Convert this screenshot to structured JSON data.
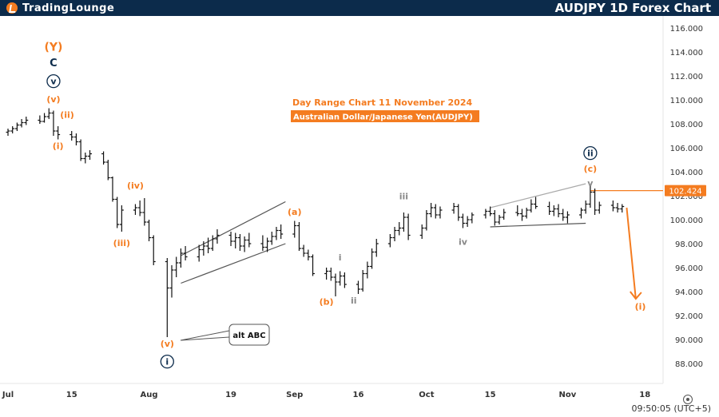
{
  "header": {
    "logo_text": "TradingLounge",
    "title": "AUDJPY 1D Forex Chart"
  },
  "annotations": {
    "subtitle_line1": "Day Range Chart 11 November 2024",
    "subtitle_line2": "Australian Dollar/Japanese Yen(AUDJPY)",
    "alt_callout": "alt ABC"
  },
  "footer": {
    "time": "09:50:05 (UTC+5)"
  },
  "colors": {
    "orange": "#f47c20",
    "navy": "#0c2b4b",
    "candle": "#111111",
    "gray": "#888888"
  },
  "chart_data": {
    "type": "candlestick",
    "title": "AUDJPY 1D Forex Chart",
    "ylim": [
      87,
      117
    ],
    "y_ticks": [
      88,
      90,
      92,
      94,
      96,
      98,
      100,
      102,
      104,
      106,
      108,
      110,
      112,
      114,
      116
    ],
    "y_tick_labels": [
      "88.000",
      "90.000",
      "92.000",
      "94.000",
      "96.000",
      "98.000",
      "100.000",
      "102.000",
      "104.000",
      "106.000",
      "108.000",
      "110.000",
      "112.000",
      "114.000",
      "116.000"
    ],
    "x_range": [
      "2024-07-01",
      "2024-11-22"
    ],
    "x_ticks": [
      {
        "label": "Jul",
        "date": "2024-07-01"
      },
      {
        "label": "15",
        "date": "2024-07-15"
      },
      {
        "label": "Aug",
        "date": "2024-08-01"
      },
      {
        "label": "19",
        "date": "2024-08-19"
      },
      {
        "label": "Sep",
        "date": "2024-09-02"
      },
      {
        "label": "16",
        "date": "2024-09-16"
      },
      {
        "label": "Oct",
        "date": "2024-10-01"
      },
      {
        "label": "15",
        "date": "2024-10-15"
      },
      {
        "label": "Nov",
        "date": "2024-11-01"
      },
      {
        "label": "18",
        "date": "2024-11-18"
      }
    ],
    "current_price": {
      "label": "102.424",
      "value": 102.424
    },
    "forecast_arrow": {
      "from": [
        "2024-11-14",
        101.0
      ],
      "to": [
        "2024-11-16",
        93.4
      ]
    },
    "ohlc": [
      {
        "d": "2024-07-01",
        "o": 107.3,
        "h": 107.6,
        "l": 107.0,
        "c": 107.4
      },
      {
        "d": "2024-07-02",
        "o": 107.4,
        "h": 107.8,
        "l": 107.2,
        "c": 107.6
      },
      {
        "d": "2024-07-03",
        "o": 107.6,
        "h": 108.1,
        "l": 107.4,
        "c": 107.9
      },
      {
        "d": "2024-07-04",
        "o": 107.9,
        "h": 108.4,
        "l": 107.7,
        "c": 108.1
      },
      {
        "d": "2024-07-05",
        "o": 108.1,
        "h": 108.6,
        "l": 107.9,
        "c": 108.3
      },
      {
        "d": "2024-07-08",
        "o": 108.3,
        "h": 108.7,
        "l": 108.0,
        "c": 108.2
      },
      {
        "d": "2024-07-09",
        "o": 108.2,
        "h": 108.9,
        "l": 108.1,
        "c": 108.6
      },
      {
        "d": "2024-07-10",
        "o": 108.6,
        "h": 109.3,
        "l": 108.4,
        "c": 108.9
      },
      {
        "d": "2024-07-11",
        "o": 108.9,
        "h": 109.1,
        "l": 107.0,
        "c": 107.4
      },
      {
        "d": "2024-07-12",
        "o": 107.4,
        "h": 107.8,
        "l": 106.7,
        "c": 107.1
      },
      {
        "d": "2024-07-15",
        "o": 107.1,
        "h": 107.4,
        "l": 106.6,
        "c": 106.9
      },
      {
        "d": "2024-07-16",
        "o": 106.9,
        "h": 107.2,
        "l": 106.2,
        "c": 106.5
      },
      {
        "d": "2024-07-17",
        "o": 106.5,
        "h": 106.7,
        "l": 104.9,
        "c": 105.1
      },
      {
        "d": "2024-07-18",
        "o": 105.1,
        "h": 105.6,
        "l": 104.7,
        "c": 105.3
      },
      {
        "d": "2024-07-19",
        "o": 105.3,
        "h": 105.8,
        "l": 105.0,
        "c": 105.5
      },
      {
        "d": "2024-07-22",
        "o": 105.5,
        "h": 105.7,
        "l": 104.6,
        "c": 104.8
      },
      {
        "d": "2024-07-23",
        "o": 104.8,
        "h": 105.0,
        "l": 103.3,
        "c": 103.5
      },
      {
        "d": "2024-07-24",
        "o": 103.5,
        "h": 103.6,
        "l": 101.5,
        "c": 101.7
      },
      {
        "d": "2024-07-25",
        "o": 101.7,
        "h": 101.9,
        "l": 99.3,
        "c": 99.6
      },
      {
        "d": "2024-07-26",
        "o": 99.6,
        "h": 101.2,
        "l": 99.0,
        "c": 100.8
      },
      {
        "d": "2024-07-29",
        "o": 100.8,
        "h": 101.3,
        "l": 100.4,
        "c": 101.0
      },
      {
        "d": "2024-07-30",
        "o": 101.0,
        "h": 101.6,
        "l": 100.3,
        "c": 100.6
      },
      {
        "d": "2024-07-31",
        "o": 100.6,
        "h": 101.8,
        "l": 99.5,
        "c": 99.8
      },
      {
        "d": "2024-08-01",
        "o": 99.8,
        "h": 100.0,
        "l": 98.2,
        "c": 98.5
      },
      {
        "d": "2024-08-02",
        "o": 98.5,
        "h": 98.7,
        "l": 96.2,
        "c": 96.5
      },
      {
        "d": "2024-08-05",
        "o": 96.5,
        "h": 96.8,
        "l": 90.2,
        "c": 94.3
      },
      {
        "d": "2024-08-06",
        "o": 94.3,
        "h": 96.2,
        "l": 93.5,
        "c": 95.8
      },
      {
        "d": "2024-08-07",
        "o": 95.8,
        "h": 96.9,
        "l": 95.2,
        "c": 96.4
      },
      {
        "d": "2024-08-08",
        "o": 96.4,
        "h": 97.6,
        "l": 96.0,
        "c": 97.2
      },
      {
        "d": "2024-08-09",
        "o": 97.2,
        "h": 97.8,
        "l": 96.6,
        "c": 96.9
      },
      {
        "d": "2024-08-12",
        "o": 96.9,
        "h": 97.9,
        "l": 96.5,
        "c": 97.5
      },
      {
        "d": "2024-08-13",
        "o": 97.5,
        "h": 98.2,
        "l": 97.0,
        "c": 97.8
      },
      {
        "d": "2024-08-14",
        "o": 97.8,
        "h": 98.5,
        "l": 97.2,
        "c": 97.6
      },
      {
        "d": "2024-08-15",
        "o": 97.6,
        "h": 98.7,
        "l": 97.4,
        "c": 98.4
      },
      {
        "d": "2024-08-16",
        "o": 98.4,
        "h": 99.2,
        "l": 98.0,
        "c": 98.7
      },
      {
        "d": "2024-08-19",
        "o": 98.7,
        "h": 99.0,
        "l": 97.8,
        "c": 98.2
      },
      {
        "d": "2024-08-20",
        "o": 98.2,
        "h": 98.9,
        "l": 97.6,
        "c": 98.5
      },
      {
        "d": "2024-08-21",
        "o": 98.5,
        "h": 98.8,
        "l": 97.4,
        "c": 97.8
      },
      {
        "d": "2024-08-22",
        "o": 97.8,
        "h": 98.6,
        "l": 97.3,
        "c": 98.3
      },
      {
        "d": "2024-08-23",
        "o": 98.3,
        "h": 98.9,
        "l": 97.7,
        "c": 98.0
      },
      {
        "d": "2024-08-26",
        "o": 98.0,
        "h": 98.7,
        "l": 97.4,
        "c": 97.7
      },
      {
        "d": "2024-08-27",
        "o": 97.7,
        "h": 98.5,
        "l": 97.3,
        "c": 98.2
      },
      {
        "d": "2024-08-28",
        "o": 98.2,
        "h": 99.0,
        "l": 97.9,
        "c": 98.6
      },
      {
        "d": "2024-08-29",
        "o": 98.6,
        "h": 99.4,
        "l": 98.3,
        "c": 99.1
      },
      {
        "d": "2024-08-30",
        "o": 99.1,
        "h": 99.6,
        "l": 98.4,
        "c": 98.8
      },
      {
        "d": "2024-09-02",
        "o": 98.8,
        "h": 99.9,
        "l": 98.5,
        "c": 99.5
      },
      {
        "d": "2024-09-03",
        "o": 99.5,
        "h": 99.8,
        "l": 97.4,
        "c": 97.6
      },
      {
        "d": "2024-09-04",
        "o": 97.6,
        "h": 97.9,
        "l": 96.9,
        "c": 97.2
      },
      {
        "d": "2024-09-05",
        "o": 97.2,
        "h": 97.5,
        "l": 96.6,
        "c": 96.9
      },
      {
        "d": "2024-09-06",
        "o": 96.9,
        "h": 97.1,
        "l": 95.3,
        "c": 95.5
      },
      {
        "d": "2024-09-09",
        "o": 95.5,
        "h": 96.0,
        "l": 95.0,
        "c": 95.7
      },
      {
        "d": "2024-09-10",
        "o": 95.7,
        "h": 96.0,
        "l": 94.9,
        "c": 95.2
      },
      {
        "d": "2024-09-11",
        "o": 95.2,
        "h": 95.5,
        "l": 93.6,
        "c": 94.8
      },
      {
        "d": "2024-09-12",
        "o": 94.8,
        "h": 95.7,
        "l": 94.5,
        "c": 95.3
      },
      {
        "d": "2024-09-13",
        "o": 95.3,
        "h": 95.6,
        "l": 94.3,
        "c": 94.6
      },
      {
        "d": "2024-09-16",
        "o": 94.6,
        "h": 94.9,
        "l": 93.8,
        "c": 94.2
      },
      {
        "d": "2024-09-17",
        "o": 94.2,
        "h": 95.8,
        "l": 94.0,
        "c": 95.5
      },
      {
        "d": "2024-09-18",
        "o": 95.5,
        "h": 96.5,
        "l": 95.1,
        "c": 96.1
      },
      {
        "d": "2024-09-19",
        "o": 96.1,
        "h": 97.6,
        "l": 95.9,
        "c": 97.3
      },
      {
        "d": "2024-09-20",
        "o": 97.3,
        "h": 98.4,
        "l": 96.9,
        "c": 98.0
      },
      {
        "d": "2024-09-23",
        "o": 98.0,
        "h": 98.8,
        "l": 97.7,
        "c": 98.5
      },
      {
        "d": "2024-09-24",
        "o": 98.5,
        "h": 99.4,
        "l": 98.2,
        "c": 99.1
      },
      {
        "d": "2024-09-25",
        "o": 99.1,
        "h": 99.8,
        "l": 98.7,
        "c": 99.3
      },
      {
        "d": "2024-09-26",
        "o": 99.3,
        "h": 100.6,
        "l": 99.0,
        "c": 100.2
      },
      {
        "d": "2024-09-27",
        "o": 100.2,
        "h": 100.5,
        "l": 98.3,
        "c": 98.7
      },
      {
        "d": "2024-09-30",
        "o": 98.7,
        "h": 99.6,
        "l": 98.4,
        "c": 99.3
      },
      {
        "d": "2024-10-01",
        "o": 99.3,
        "h": 100.8,
        "l": 99.1,
        "c": 100.5
      },
      {
        "d": "2024-10-02",
        "o": 100.5,
        "h": 101.4,
        "l": 100.2,
        "c": 101.0
      },
      {
        "d": "2024-10-03",
        "o": 101.0,
        "h": 101.3,
        "l": 100.1,
        "c": 100.4
      },
      {
        "d": "2024-10-04",
        "o": 100.4,
        "h": 101.1,
        "l": 100.1,
        "c": 100.8
      },
      {
        "d": "2024-10-07",
        "o": 100.8,
        "h": 101.4,
        "l": 100.5,
        "c": 101.1
      },
      {
        "d": "2024-10-08",
        "o": 101.1,
        "h": 101.3,
        "l": 99.9,
        "c": 100.2
      },
      {
        "d": "2024-10-09",
        "o": 100.2,
        "h": 100.5,
        "l": 99.3,
        "c": 99.7
      },
      {
        "d": "2024-10-10",
        "o": 99.7,
        "h": 100.3,
        "l": 99.4,
        "c": 100.0
      },
      {
        "d": "2024-10-11",
        "o": 100.0,
        "h": 100.6,
        "l": 99.7,
        "c": 100.4
      },
      {
        "d": "2024-10-14",
        "o": 100.4,
        "h": 100.9,
        "l": 100.1,
        "c": 100.7
      },
      {
        "d": "2024-10-15",
        "o": 100.7,
        "h": 101.1,
        "l": 100.3,
        "c": 100.5
      },
      {
        "d": "2024-10-16",
        "o": 100.5,
        "h": 100.8,
        "l": 99.5,
        "c": 99.8
      },
      {
        "d": "2024-10-17",
        "o": 99.8,
        "h": 100.4,
        "l": 99.6,
        "c": 100.2
      },
      {
        "d": "2024-10-18",
        "o": 100.2,
        "h": 100.9,
        "l": 100.0,
        "c": 100.6
      },
      {
        "d": "2024-10-21",
        "o": 100.6,
        "h": 101.2,
        "l": 100.3,
        "c": 100.5
      },
      {
        "d": "2024-10-22",
        "o": 100.5,
        "h": 100.9,
        "l": 99.9,
        "c": 100.3
      },
      {
        "d": "2024-10-23",
        "o": 100.3,
        "h": 101.0,
        "l": 100.1,
        "c": 100.8
      },
      {
        "d": "2024-10-24",
        "o": 100.8,
        "h": 101.7,
        "l": 100.6,
        "c": 101.3
      },
      {
        "d": "2024-10-25",
        "o": 101.3,
        "h": 101.9,
        "l": 100.9,
        "c": 101.1
      },
      {
        "d": "2024-10-28",
        "o": 101.1,
        "h": 101.5,
        "l": 100.4,
        "c": 100.7
      },
      {
        "d": "2024-10-29",
        "o": 100.7,
        "h": 101.2,
        "l": 100.3,
        "c": 100.9
      },
      {
        "d": "2024-10-30",
        "o": 100.9,
        "h": 101.3,
        "l": 100.2,
        "c": 100.5
      },
      {
        "d": "2024-10-31",
        "o": 100.5,
        "h": 100.9,
        "l": 99.9,
        "c": 100.2
      },
      {
        "d": "2024-11-01",
        "o": 100.2,
        "h": 100.7,
        "l": 99.7,
        "c": 100.4
      },
      {
        "d": "2024-11-04",
        "o": 100.4,
        "h": 101.0,
        "l": 100.1,
        "c": 100.8
      },
      {
        "d": "2024-11-05",
        "o": 100.8,
        "h": 101.6,
        "l": 100.5,
        "c": 101.3
      },
      {
        "d": "2024-11-06",
        "o": 101.3,
        "h": 102.8,
        "l": 101.0,
        "c": 102.3
      },
      {
        "d": "2024-11-07",
        "o": 102.3,
        "h": 102.6,
        "l": 100.4,
        "c": 100.8
      },
      {
        "d": "2024-11-08",
        "o": 100.8,
        "h": 101.5,
        "l": 100.5,
        "c": 101.2
      },
      {
        "d": "2024-11-11",
        "o": 101.2,
        "h": 101.6,
        "l": 100.7,
        "c": 101.0
      },
      {
        "d": "2024-11-12",
        "o": 101.0,
        "h": 101.4,
        "l": 100.6,
        "c": 100.9
      },
      {
        "d": "2024-11-13",
        "o": 100.9,
        "h": 101.3,
        "l": 100.6,
        "c": 101.1
      }
    ],
    "trendlines": [
      {
        "name": "channel-upper",
        "color": "#555555",
        "from": [
          "2024-08-08",
          97.0
        ],
        "to": [
          "2024-08-31",
          101.5
        ]
      },
      {
        "name": "channel-lower",
        "color": "#555555",
        "from": [
          "2024-08-08",
          94.7
        ],
        "to": [
          "2024-08-31",
          98.0
        ]
      },
      {
        "name": "triangle-upper",
        "color": "#aaaaaa",
        "from": [
          "2024-10-15",
          101.0
        ],
        "to": [
          "2024-11-05",
          103.0
        ]
      },
      {
        "name": "triangle-lower",
        "color": "#555555",
        "from": [
          "2024-10-15",
          99.4
        ],
        "to": [
          "2024-11-05",
          99.7
        ]
      }
    ],
    "wave_labels": [
      {
        "text": "(Y)",
        "color": "orange",
        "d": "2024-07-11",
        "y": 114.1,
        "circle": false,
        "size": 14
      },
      {
        "text": "C",
        "color": "navy",
        "d": "2024-07-11",
        "y": 112.8,
        "circle": false,
        "size": 13
      },
      {
        "text": "v",
        "color": "navy",
        "d": "2024-07-11",
        "y": 111.3,
        "circle": true,
        "size": 11
      },
      {
        "text": "(v)",
        "color": "orange",
        "d": "2024-07-11",
        "y": 109.8,
        "circle": false,
        "size": 11
      },
      {
        "text": "(ii)",
        "color": "orange",
        "d": "2024-07-14",
        "y": 108.5,
        "circle": false,
        "size": 11
      },
      {
        "text": "(i)",
        "color": "orange",
        "d": "2024-07-12",
        "y": 105.9,
        "circle": false,
        "size": 11
      },
      {
        "text": "(iv)",
        "color": "orange",
        "d": "2024-07-29",
        "y": 102.6,
        "circle": false,
        "size": 11
      },
      {
        "text": "(iii)",
        "color": "orange",
        "d": "2024-07-26",
        "y": 97.8,
        "circle": false,
        "size": 11
      },
      {
        "text": "(v)",
        "color": "orange",
        "d": "2024-08-05",
        "y": 89.4,
        "circle": false,
        "size": 11
      },
      {
        "text": "i",
        "color": "navy",
        "d": "2024-08-05",
        "y": 87.9,
        "circle": true,
        "size": 11
      },
      {
        "text": "(a)",
        "color": "orange",
        "d": "2024-09-02",
        "y": 100.4,
        "circle": false,
        "size": 11
      },
      {
        "text": "i",
        "color": "gray",
        "d": "2024-09-12",
        "y": 96.6,
        "circle": false,
        "size": 11
      },
      {
        "text": "ii",
        "color": "gray",
        "d": "2024-09-15",
        "y": 93.0,
        "circle": false,
        "size": 11
      },
      {
        "text": "(b)",
        "color": "orange",
        "d": "2024-09-09",
        "y": 92.9,
        "circle": false,
        "size": 11
      },
      {
        "text": "iii",
        "color": "gray",
        "d": "2024-09-26",
        "y": 101.7,
        "circle": false,
        "size": 11
      },
      {
        "text": "iv",
        "color": "gray",
        "d": "2024-10-09",
        "y": 97.9,
        "circle": false,
        "size": 11
      },
      {
        "text": "ii",
        "color": "navy",
        "d": "2024-11-06",
        "y": 105.3,
        "circle": true,
        "size": 11
      },
      {
        "text": "(c)",
        "color": "orange",
        "d": "2024-11-06",
        "y": 104.0,
        "circle": false,
        "size": 11
      },
      {
        "text": "v",
        "color": "gray",
        "d": "2024-11-06",
        "y": 102.8,
        "circle": false,
        "size": 11
      },
      {
        "text": "(i)",
        "color": "orange",
        "d": "2024-11-17",
        "y": 92.5,
        "circle": false,
        "size": 11
      }
    ]
  }
}
